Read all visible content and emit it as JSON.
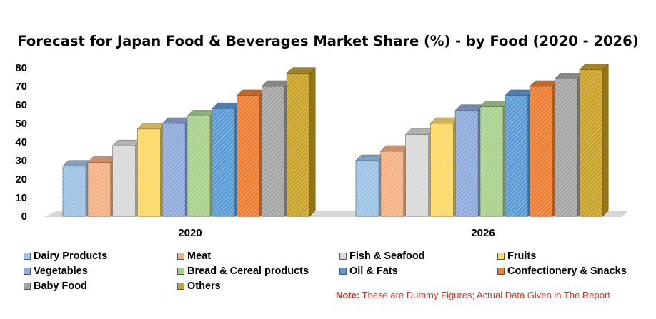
{
  "chart_data": {
    "type": "bar",
    "title": "Forecast for Japan Food & Beverages Market Share (%) - by Food (2020 - 2026)",
    "categories": [
      "2020",
      "2026"
    ],
    "ylim": [
      0,
      80
    ],
    "yticks": [
      0,
      10,
      20,
      30,
      40,
      50,
      60,
      70,
      80
    ],
    "series": [
      {
        "name": "Dairy Products",
        "color": "#9dc3e6",
        "values": [
          27,
          30
        ]
      },
      {
        "name": "Meat",
        "color": "#f4b183",
        "values": [
          29,
          35
        ]
      },
      {
        "name": "Fish & Seafood",
        "color": "#d9d9d9",
        "values": [
          38,
          44
        ]
      },
      {
        "name": "Fruits",
        "color": "#ffd966",
        "values": [
          47,
          50
        ]
      },
      {
        "name": "Vegetables",
        "color": "#8faadc",
        "values": [
          50,
          57
        ]
      },
      {
        "name": "Bread & Cereal products",
        "color": "#a9d18e",
        "values": [
          54,
          59
        ]
      },
      {
        "name": "Oil & Fats",
        "color": "#5b9bd5",
        "values": [
          58,
          65
        ]
      },
      {
        "name": "Confectionery & Snacks",
        "color": "#ed7d31",
        "values": [
          65,
          70
        ]
      },
      {
        "name": "Baby Food",
        "color": "#a5a5a5",
        "values": [
          70,
          74
        ]
      },
      {
        "name": "Others",
        "color": "#c9a227",
        "values": [
          77,
          79
        ]
      }
    ]
  },
  "note": {
    "label": "Note:",
    "text": " These are Dummy Figures; Actual Data Given in The Report"
  }
}
